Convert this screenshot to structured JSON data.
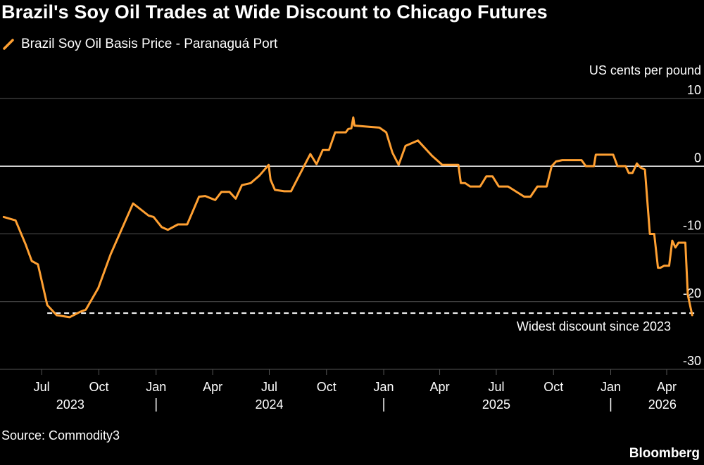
{
  "title": "Brazil's Soy Oil Trades at Wide Discount to Chicago Futures",
  "source": "Source: Commodity3",
  "brand": "Bloomberg",
  "colors": {
    "background": "#000000",
    "line": "#ffa032",
    "grid": "#555555",
    "zero": "#ffffff",
    "text": "#ffffff"
  },
  "chart_data": {
    "type": "line",
    "title": "Brazil's Soy Oil Trades at Wide Discount to Chicago Futures",
    "ylabel": "US cents per pound",
    "ylim": [
      -30,
      10
    ],
    "yticks": [
      10,
      0,
      -10,
      -20,
      -30
    ],
    "ytick_labels": [
      "10",
      "0",
      "-10",
      "-20",
      "-30"
    ],
    "xlim": [
      "2023-04-25",
      "2026-05-31"
    ],
    "x_ticks": [
      {
        "date": "2023-07-01",
        "label": "Jul"
      },
      {
        "date": "2023-10-01",
        "label": "Oct"
      },
      {
        "date": "2024-01-01",
        "label": "Jan"
      },
      {
        "date": "2024-04-01",
        "label": "Apr"
      },
      {
        "date": "2024-07-01",
        "label": "Jul"
      },
      {
        "date": "2024-10-01",
        "label": "Oct"
      },
      {
        "date": "2025-01-01",
        "label": "Jan"
      },
      {
        "date": "2025-04-01",
        "label": "Apr"
      },
      {
        "date": "2025-07-01",
        "label": "Jul"
      },
      {
        "date": "2025-10-01",
        "label": "Oct"
      },
      {
        "date": "2026-01-01",
        "label": "Jan"
      },
      {
        "date": "2026-04-01",
        "label": "Apr"
      }
    ],
    "year_labels": [
      {
        "date": "2023-08-16",
        "label": "2023"
      },
      {
        "date": "2024-07-01",
        "label": "2024"
      },
      {
        "date": "2025-07-01",
        "label": "2025"
      },
      {
        "date": "2026-03-25",
        "label": "2026"
      }
    ],
    "year_separators": [
      "2024-01-01",
      "2025-01-01",
      "2026-01-01"
    ],
    "grid": true,
    "series": [
      {
        "name": "Brazil Soy Oil Basis Price - Paranaguá Port",
        "points": [
          [
            "2023-05-01",
            -7.5
          ],
          [
            "2023-05-20",
            -8.0
          ],
          [
            "2023-06-05",
            -11.5
          ],
          [
            "2023-06-15",
            -14.0
          ],
          [
            "2023-06-25",
            -14.5
          ],
          [
            "2023-07-10",
            -20.5
          ],
          [
            "2023-07-25",
            -22.0
          ],
          [
            "2023-08-15",
            -22.3
          ],
          [
            "2023-09-01",
            -21.5
          ],
          [
            "2023-09-10",
            -21.2
          ],
          [
            "2023-09-30",
            -18.0
          ],
          [
            "2023-10-20",
            -13.0
          ],
          [
            "2023-11-25",
            -5.5
          ],
          [
            "2023-12-20",
            -7.3
          ],
          [
            "2023-12-28",
            -7.5
          ],
          [
            "2024-01-10",
            -9.0
          ],
          [
            "2024-01-20",
            -9.4
          ],
          [
            "2024-02-05",
            -8.6
          ],
          [
            "2024-02-20",
            -8.6
          ],
          [
            "2024-03-10",
            -4.5
          ],
          [
            "2024-03-20",
            -4.4
          ],
          [
            "2024-04-05",
            -5.0
          ],
          [
            "2024-04-15",
            -3.8
          ],
          [
            "2024-04-28",
            -3.8
          ],
          [
            "2024-05-08",
            -4.8
          ],
          [
            "2024-05-18",
            -2.8
          ],
          [
            "2024-06-01",
            -2.5
          ],
          [
            "2024-06-15",
            -1.4
          ],
          [
            "2024-06-30",
            0.2
          ],
          [
            "2024-07-03",
            -2.0
          ],
          [
            "2024-07-10",
            -3.5
          ],
          [
            "2024-07-25",
            -3.7
          ],
          [
            "2024-08-05",
            -3.7
          ],
          [
            "2024-09-05",
            1.8
          ],
          [
            "2024-09-15",
            0.3
          ],
          [
            "2024-09-25",
            2.4
          ],
          [
            "2024-10-05",
            2.4
          ],
          [
            "2024-10-15",
            5.0
          ],
          [
            "2024-11-01",
            5.0
          ],
          [
            "2024-11-05",
            5.5
          ],
          [
            "2024-11-10",
            5.6
          ],
          [
            "2024-11-13",
            7.2
          ],
          [
            "2024-11-15",
            6.0
          ],
          [
            "2024-12-10",
            5.8
          ],
          [
            "2024-12-25",
            5.7
          ],
          [
            "2025-01-05",
            5.0
          ],
          [
            "2025-01-15",
            2.0
          ],
          [
            "2025-01-25",
            0.2
          ],
          [
            "2025-02-05",
            3.0
          ],
          [
            "2025-02-25",
            3.8
          ],
          [
            "2025-03-20",
            1.5
          ],
          [
            "2025-04-05",
            0.2
          ],
          [
            "2025-04-15",
            0.2
          ],
          [
            "2025-05-01",
            0.2
          ],
          [
            "2025-05-05",
            -2.5
          ],
          [
            "2025-05-12",
            -2.5
          ],
          [
            "2025-05-20",
            -3.0
          ],
          [
            "2025-06-05",
            -3.0
          ],
          [
            "2025-06-15",
            -1.5
          ],
          [
            "2025-06-25",
            -1.5
          ],
          [
            "2025-07-05",
            -3.0
          ],
          [
            "2025-07-20",
            -3.0
          ],
          [
            "2025-08-15",
            -4.5
          ],
          [
            "2025-08-25",
            -4.5
          ],
          [
            "2025-09-05",
            -3.0
          ],
          [
            "2025-09-20",
            -3.0
          ],
          [
            "2025-09-28",
            0.0
          ],
          [
            "2025-10-05",
            0.7
          ],
          [
            "2025-10-15",
            0.9
          ],
          [
            "2025-11-15",
            0.9
          ],
          [
            "2025-11-22",
            0.0
          ],
          [
            "2025-12-05",
            0.0
          ],
          [
            "2025-12-08",
            1.7
          ],
          [
            "2026-01-05",
            1.7
          ],
          [
            "2026-01-12",
            0.0
          ],
          [
            "2026-01-25",
            0.0
          ],
          [
            "2026-01-30",
            -1.0
          ],
          [
            "2026-02-05",
            -1.0
          ],
          [
            "2026-02-12",
            0.4
          ],
          [
            "2026-02-18",
            -0.2
          ],
          [
            "2026-02-25",
            -0.5
          ],
          [
            "2026-03-05",
            -10.0
          ],
          [
            "2026-03-12",
            -10.0
          ],
          [
            "2026-03-18",
            -15.0
          ],
          [
            "2026-03-22",
            -15.0
          ],
          [
            "2026-03-28",
            -14.7
          ],
          [
            "2026-04-05",
            -14.7
          ],
          [
            "2026-04-10",
            -11.0
          ],
          [
            "2026-04-15",
            -12.0
          ],
          [
            "2026-04-20",
            -11.3
          ],
          [
            "2026-05-01",
            -11.3
          ],
          [
            "2026-05-05",
            -19.0
          ],
          [
            "2026-05-12",
            -22.0
          ]
        ]
      }
    ],
    "reference_line": {
      "value": -21.7,
      "x_start": "2023-07-10",
      "x_end": "2026-05-18",
      "label": "Widest discount since 2023"
    }
  }
}
